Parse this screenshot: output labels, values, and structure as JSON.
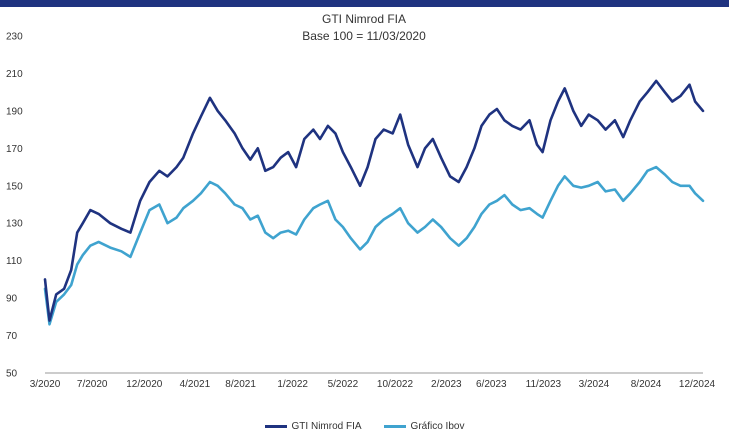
{
  "chart_data": {
    "type": "line",
    "title": "GTI Nimrod FIA",
    "subtitle": "Base 100 = 11/03/2020",
    "xlabel": "",
    "ylabel": "",
    "ylim": [
      50,
      230
    ],
    "yticks": [
      50,
      70,
      90,
      110,
      130,
      150,
      170,
      190,
      210,
      230
    ],
    "xlim": [
      "2020-03-11",
      "2024-12-31"
    ],
    "xticks": [
      {
        "date": "2020-03-01",
        "label": "3/2020"
      },
      {
        "date": "2020-07-15",
        "label": "7/2020"
      },
      {
        "date": "2020-12-01",
        "label": "12/2020"
      },
      {
        "date": "2021-04-15",
        "label": "4/2021"
      },
      {
        "date": "2021-08-15",
        "label": "8/2021"
      },
      {
        "date": "2022-01-01",
        "label": "1/2022"
      },
      {
        "date": "2022-05-15",
        "label": "5/2022"
      },
      {
        "date": "2022-10-01",
        "label": "10/2022"
      },
      {
        "date": "2023-02-15",
        "label": "2/2023"
      },
      {
        "date": "2023-06-15",
        "label": "6/2023"
      },
      {
        "date": "2023-11-01",
        "label": "11/2023"
      },
      {
        "date": "2024-03-15",
        "label": "3/2024"
      },
      {
        "date": "2024-08-01",
        "label": "8/2024"
      },
      {
        "date": "2024-12-15",
        "label": "12/2024"
      }
    ],
    "legend_position": "bottom",
    "grid": false,
    "series": [
      {
        "name": "GTI Nimrod FIA",
        "color": "#1f3380",
        "points": [
          [
            "2020-03-11",
            100
          ],
          [
            "2020-03-23",
            78
          ],
          [
            "2020-04-10",
            92
          ],
          [
            "2020-05-01",
            95
          ],
          [
            "2020-05-20",
            105
          ],
          [
            "2020-06-05",
            125
          ],
          [
            "2020-06-20",
            130
          ],
          [
            "2020-07-10",
            137
          ],
          [
            "2020-08-01",
            135
          ],
          [
            "2020-09-01",
            130
          ],
          [
            "2020-10-01",
            127
          ],
          [
            "2020-10-25",
            125
          ],
          [
            "2020-11-20",
            142
          ],
          [
            "2020-12-15",
            152
          ],
          [
            "2021-01-10",
            158
          ],
          [
            "2021-02-01",
            155
          ],
          [
            "2021-02-25",
            160
          ],
          [
            "2021-03-15",
            165
          ],
          [
            "2021-04-10",
            178
          ],
          [
            "2021-05-01",
            187
          ],
          [
            "2021-05-25",
            197
          ],
          [
            "2021-06-15",
            190
          ],
          [
            "2021-07-05",
            185
          ],
          [
            "2021-07-30",
            178
          ],
          [
            "2021-08-20",
            170
          ],
          [
            "2021-09-10",
            164
          ],
          [
            "2021-09-30",
            170
          ],
          [
            "2021-10-20",
            158
          ],
          [
            "2021-11-10",
            160
          ],
          [
            "2021-11-30",
            165
          ],
          [
            "2021-12-20",
            168
          ],
          [
            "2022-01-10",
            160
          ],
          [
            "2022-02-01",
            175
          ],
          [
            "2022-02-25",
            180
          ],
          [
            "2022-03-15",
            175
          ],
          [
            "2022-04-05",
            182
          ],
          [
            "2022-04-25",
            178
          ],
          [
            "2022-05-15",
            168
          ],
          [
            "2022-06-05",
            160
          ],
          [
            "2022-06-30",
            150
          ],
          [
            "2022-07-20",
            160
          ],
          [
            "2022-08-10",
            175
          ],
          [
            "2022-09-01",
            180
          ],
          [
            "2022-09-25",
            178
          ],
          [
            "2022-10-15",
            188
          ],
          [
            "2022-11-05",
            172
          ],
          [
            "2022-11-30",
            160
          ],
          [
            "2022-12-20",
            170
          ],
          [
            "2023-01-10",
            175
          ],
          [
            "2023-02-01",
            165
          ],
          [
            "2023-02-25",
            155
          ],
          [
            "2023-03-20",
            152
          ],
          [
            "2023-04-10",
            160
          ],
          [
            "2023-05-01",
            170
          ],
          [
            "2023-05-20",
            182
          ],
          [
            "2023-06-10",
            188
          ],
          [
            "2023-06-30",
            191
          ],
          [
            "2023-07-20",
            185
          ],
          [
            "2023-08-10",
            182
          ],
          [
            "2023-09-01",
            180
          ],
          [
            "2023-09-25",
            185
          ],
          [
            "2023-10-15",
            172
          ],
          [
            "2023-10-30",
            168
          ],
          [
            "2023-11-20",
            185
          ],
          [
            "2023-12-10",
            195
          ],
          [
            "2023-12-28",
            202
          ],
          [
            "2024-01-20",
            190
          ],
          [
            "2024-02-10",
            182
          ],
          [
            "2024-03-01",
            188
          ],
          [
            "2024-03-25",
            185
          ],
          [
            "2024-04-15",
            180
          ],
          [
            "2024-05-10",
            185
          ],
          [
            "2024-06-01",
            176
          ],
          [
            "2024-06-20",
            185
          ],
          [
            "2024-07-15",
            195
          ],
          [
            "2024-08-05",
            200
          ],
          [
            "2024-08-28",
            206
          ],
          [
            "2024-09-20",
            200
          ],
          [
            "2024-10-10",
            195
          ],
          [
            "2024-11-01",
            198
          ],
          [
            "2024-11-25",
            204
          ],
          [
            "2024-12-10",
            195
          ],
          [
            "2024-12-31",
            190
          ]
        ]
      },
      {
        "name": "Gráfico Ibov",
        "color": "#3fa3cf",
        "points": [
          [
            "2020-03-11",
            95
          ],
          [
            "2020-03-23",
            76
          ],
          [
            "2020-04-10",
            88
          ],
          [
            "2020-05-01",
            92
          ],
          [
            "2020-05-20",
            97
          ],
          [
            "2020-06-05",
            108
          ],
          [
            "2020-06-20",
            113
          ],
          [
            "2020-07-10",
            118
          ],
          [
            "2020-08-01",
            120
          ],
          [
            "2020-09-01",
            117
          ],
          [
            "2020-10-01",
            115
          ],
          [
            "2020-10-25",
            112
          ],
          [
            "2020-11-20",
            125
          ],
          [
            "2020-12-15",
            137
          ],
          [
            "2021-01-10",
            140
          ],
          [
            "2021-02-01",
            130
          ],
          [
            "2021-02-25",
            133
          ],
          [
            "2021-03-15",
            138
          ],
          [
            "2021-04-10",
            142
          ],
          [
            "2021-05-01",
            146
          ],
          [
            "2021-05-25",
            152
          ],
          [
            "2021-06-15",
            150
          ],
          [
            "2021-07-05",
            146
          ],
          [
            "2021-07-30",
            140
          ],
          [
            "2021-08-20",
            138
          ],
          [
            "2021-09-10",
            132
          ],
          [
            "2021-09-30",
            134
          ],
          [
            "2021-10-20",
            125
          ],
          [
            "2021-11-10",
            122
          ],
          [
            "2021-11-30",
            125
          ],
          [
            "2021-12-20",
            126
          ],
          [
            "2022-01-10",
            124
          ],
          [
            "2022-02-01",
            132
          ],
          [
            "2022-02-25",
            138
          ],
          [
            "2022-03-15",
            140
          ],
          [
            "2022-04-05",
            142
          ],
          [
            "2022-04-25",
            132
          ],
          [
            "2022-05-15",
            128
          ],
          [
            "2022-06-05",
            122
          ],
          [
            "2022-06-30",
            116
          ],
          [
            "2022-07-20",
            120
          ],
          [
            "2022-08-10",
            128
          ],
          [
            "2022-09-01",
            132
          ],
          [
            "2022-09-25",
            135
          ],
          [
            "2022-10-15",
            138
          ],
          [
            "2022-11-05",
            130
          ],
          [
            "2022-11-30",
            125
          ],
          [
            "2022-12-20",
            128
          ],
          [
            "2023-01-10",
            132
          ],
          [
            "2023-02-01",
            128
          ],
          [
            "2023-02-25",
            122
          ],
          [
            "2023-03-20",
            118
          ],
          [
            "2023-04-10",
            122
          ],
          [
            "2023-05-01",
            128
          ],
          [
            "2023-05-20",
            135
          ],
          [
            "2023-06-10",
            140
          ],
          [
            "2023-06-30",
            142
          ],
          [
            "2023-07-20",
            145
          ],
          [
            "2023-08-10",
            140
          ],
          [
            "2023-09-01",
            137
          ],
          [
            "2023-09-25",
            138
          ],
          [
            "2023-10-15",
            135
          ],
          [
            "2023-10-30",
            133
          ],
          [
            "2023-11-20",
            142
          ],
          [
            "2023-12-10",
            150
          ],
          [
            "2023-12-28",
            155
          ],
          [
            "2024-01-20",
            150
          ],
          [
            "2024-02-10",
            149
          ],
          [
            "2024-03-01",
            150
          ],
          [
            "2024-03-25",
            152
          ],
          [
            "2024-04-15",
            147
          ],
          [
            "2024-05-10",
            148
          ],
          [
            "2024-06-01",
            142
          ],
          [
            "2024-06-20",
            146
          ],
          [
            "2024-07-15",
            152
          ],
          [
            "2024-08-05",
            158
          ],
          [
            "2024-08-28",
            160
          ],
          [
            "2024-09-20",
            156
          ],
          [
            "2024-10-10",
            152
          ],
          [
            "2024-11-01",
            150
          ],
          [
            "2024-11-25",
            150
          ],
          [
            "2024-12-10",
            146
          ],
          [
            "2024-12-31",
            142
          ]
        ]
      }
    ]
  }
}
